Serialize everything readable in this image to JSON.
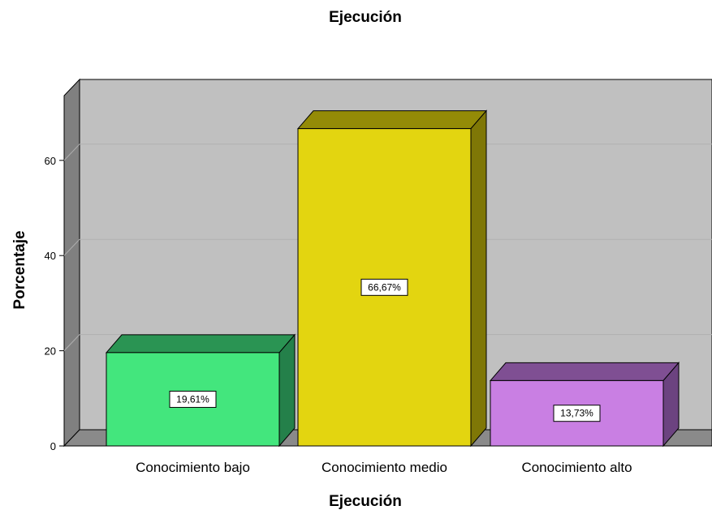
{
  "chart_data": {
    "type": "bar",
    "title": "Ejecución",
    "xlabel": "Ejecución",
    "ylabel": "Porcentaje",
    "categories": [
      "Conocimiento bajo",
      "Conocimiento medio",
      "Conocimiento alto"
    ],
    "values": [
      19.61,
      66.67,
      13.73
    ],
    "data_labels": [
      "19,61%",
      "66,67%",
      "13,73%"
    ],
    "y_ticks": [
      "0",
      "20",
      "40",
      "60"
    ],
    "ylim": [
      0,
      70
    ],
    "grid": true,
    "three_d": true,
    "colors": {
      "bars": [
        "#43e67d",
        "#e3d510",
        "#c97fe3"
      ],
      "bar_tops": [
        "#2a9453",
        "#948b07",
        "#7f4f93"
      ],
      "bar_sides": [
        "#24804a",
        "#7f7706",
        "#6c4380"
      ],
      "plot_back": "#c0c0c0",
      "plot_wall": "#808080",
      "plot_floor": "#8a8a8a",
      "grid": "#b0b0b0"
    }
  }
}
